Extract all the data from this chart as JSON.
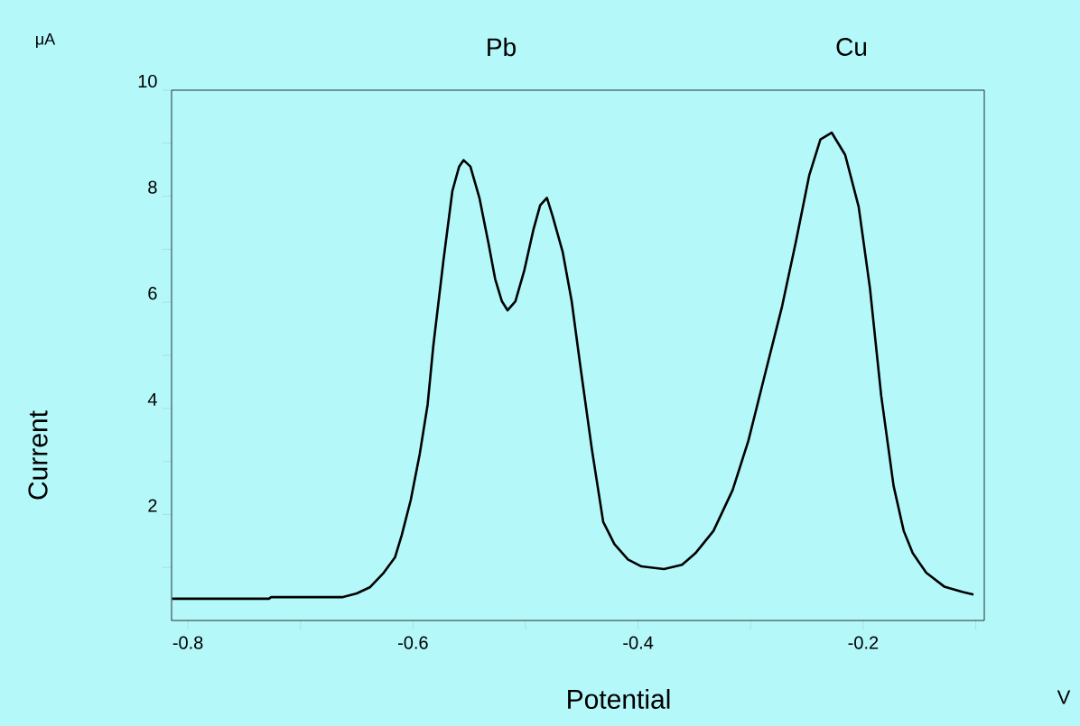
{
  "chart_data": {
    "type": "line",
    "xlabel": "Potential",
    "ylabel": "Current",
    "annotations": [
      "μA",
      "V",
      "Pb",
      "Cu"
    ],
    "color": "#000000",
    "grid": false,
    "xlim": [
      -0.8145,
      -0.0924
    ],
    "ylim": [
      0,
      10
    ],
    "xticks": [
      -0.8,
      {
        "value": -0.7,
        "label": null
      },
      -0.6,
      {
        "value": -0.5,
        "label": null
      },
      -0.4,
      {
        "value": -0.3,
        "label": null
      },
      -0.2,
      {
        "value": -0.1,
        "label": null
      }
    ],
    "yticks": [
      {
        "value": 1,
        "label": null
      },
      2,
      {
        "value": 3,
        "label": null
      },
      4,
      {
        "value": 5,
        "label": null
      },
      6,
      {
        "value": 7,
        "label": null
      },
      8,
      {
        "value": 9,
        "label": null
      },
      10
    ],
    "x": [
      -0.814,
      -0.728,
      -0.726,
      -0.663,
      -0.65,
      -0.638,
      -0.626,
      -0.616,
      -0.61,
      -0.602,
      -0.594,
      -0.587,
      -0.582,
      -0.573,
      -0.565,
      -0.559,
      -0.555,
      -0.549,
      -0.541,
      -0.533,
      -0.527,
      -0.521,
      -0.516,
      -0.509,
      -0.501,
      -0.493,
      -0.487,
      -0.481,
      -0.476,
      -0.467,
      -0.459,
      -0.451,
      -0.441,
      -0.431,
      -0.421,
      -0.409,
      -0.397,
      -0.377,
      -0.361,
      -0.349,
      -0.333,
      -0.316,
      -0.302,
      -0.288,
      -0.272,
      -0.26,
      -0.248,
      -0.238,
      -0.228,
      -0.216,
      -0.204,
      -0.194,
      -0.184,
      -0.173,
      -0.164,
      -0.156,
      -0.144,
      -0.128,
      -0.112,
      -0.102
    ],
    "values": [
      0.41,
      0.41,
      0.44,
      0.44,
      0.51,
      0.63,
      0.9,
      1.19,
      1.61,
      2.27,
      3.14,
      4.07,
      5.17,
      6.78,
      8.1,
      8.56,
      8.68,
      8.56,
      7.97,
      7.12,
      6.44,
      6.02,
      5.85,
      6.02,
      6.61,
      7.37,
      7.83,
      7.97,
      7.63,
      6.95,
      6.02,
      4.75,
      3.22,
      1.86,
      1.44,
      1.15,
      1.02,
      0.97,
      1.05,
      1.27,
      1.69,
      2.46,
      3.39,
      4.58,
      5.93,
      7.12,
      8.39,
      9.07,
      9.2,
      8.78,
      7.8,
      6.27,
      4.24,
      2.54,
      1.69,
      1.27,
      0.9,
      0.64,
      0.54,
      0.49
    ]
  }
}
